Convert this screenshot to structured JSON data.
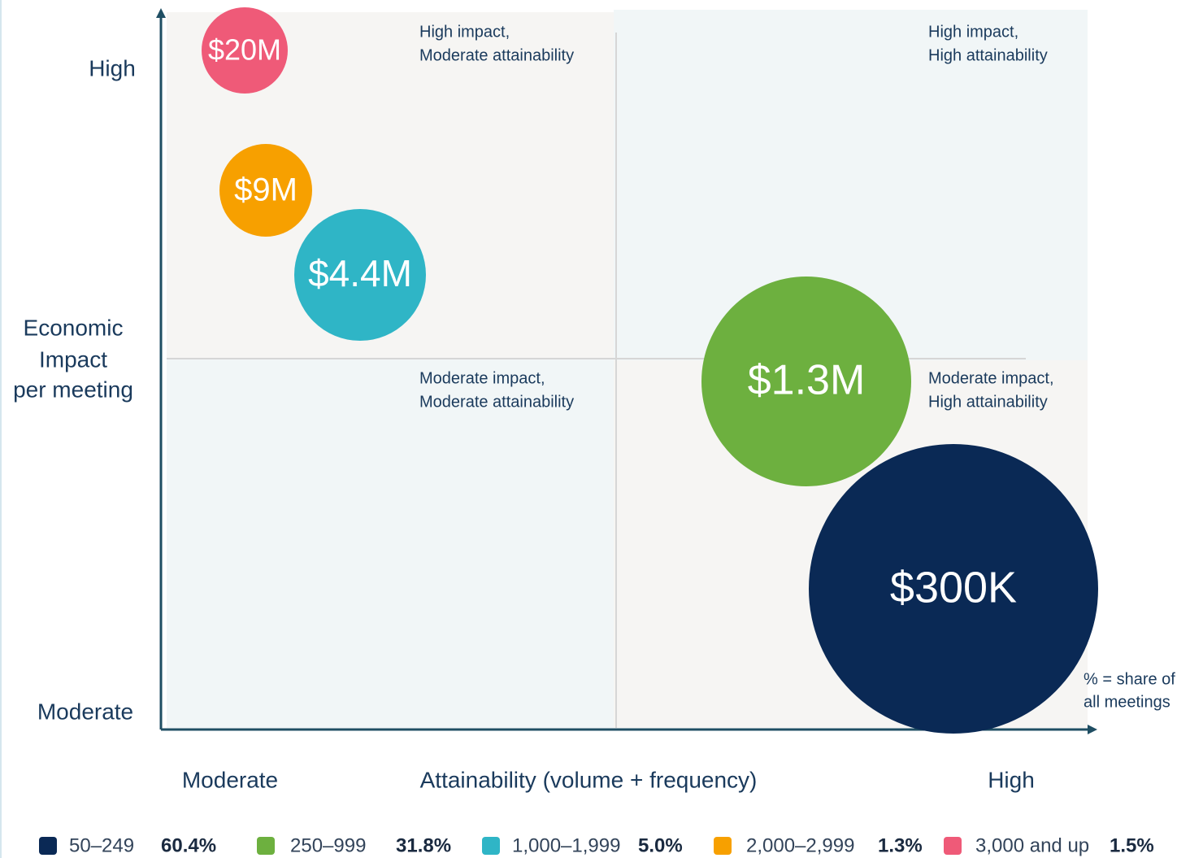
{
  "quadrants": [
    [
      "High impact,",
      "Moderate attainability"
    ],
    [
      "High impact,",
      "High attainability"
    ],
    [
      "Moderate impact,",
      "Moderate attainability"
    ],
    [
      "Moderate impact,",
      "High attainability"
    ]
  ],
  "y_axis": {
    "title": [
      "Economic",
      "Impact",
      "per meeting"
    ],
    "high": "High",
    "low": "Moderate"
  },
  "x_axis": {
    "title": "Attainability (volume + frequency)",
    "low": "Moderate",
    "high": "High"
  },
  "note": [
    "% = share of",
    "all meetings"
  ],
  "bubbles": [
    {
      "label": "$20M",
      "color": "#ef5a78"
    },
    {
      "label": "$9M",
      "color": "#f7a000"
    },
    {
      "label": "$4.4M",
      "color": "#2fb5c6"
    },
    {
      "label": "$1.3M",
      "color": "#6db03f"
    },
    {
      "label": "$300K",
      "color": "#0a2955"
    }
  ],
  "legend": [
    {
      "range": "50–249",
      "share": "60.4%",
      "color": "#0a2955"
    },
    {
      "range": "250–999",
      "share": "31.8%",
      "color": "#6db03f"
    },
    {
      "range": "1,000–1,999",
      "share": "5.0%",
      "color": "#2fb5c6"
    },
    {
      "range": "2,000–2,999",
      "share": "1.3%",
      "color": "#f7a000"
    },
    {
      "range": "3,000 and up",
      "share": "1.5%",
      "color": "#ef5a78"
    }
  ]
}
